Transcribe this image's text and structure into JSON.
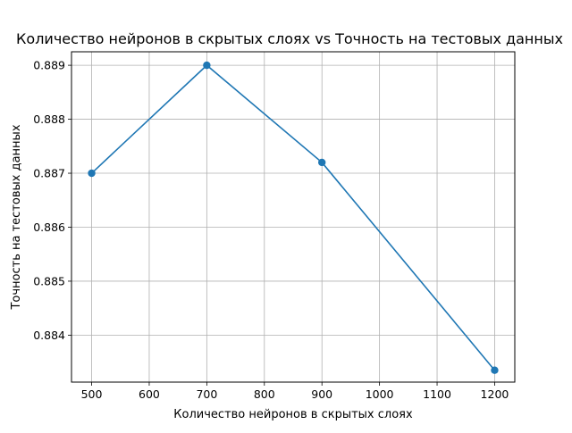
{
  "chart_data": {
    "type": "line",
    "title": "Количество нейронов в скрытых слоях vs Точность на тестовых данных",
    "xlabel": "Количество нейронов в скрытых слоях",
    "ylabel": "Точность на тестовых данных",
    "x": [
      500,
      700,
      900,
      1200
    ],
    "y": [
      0.887,
      0.889,
      0.8872,
      0.88335
    ],
    "xlim": [
      465,
      1235
    ],
    "ylim": [
      0.88313,
      0.88925
    ],
    "xticks": [
      500,
      600,
      700,
      800,
      900,
      1000,
      1100,
      1200
    ],
    "xtick_labels": [
      "500",
      "600",
      "700",
      "800",
      "900",
      "1000",
      "1100",
      "1200"
    ],
    "yticks": [
      0.884,
      0.885,
      0.886,
      0.887,
      0.888,
      0.889
    ],
    "ytick_labels": [
      "0.884",
      "0.885",
      "0.886",
      "0.887",
      "0.888",
      "0.889"
    ],
    "grid": true,
    "marker": "circle",
    "color": "#1f77b4"
  }
}
